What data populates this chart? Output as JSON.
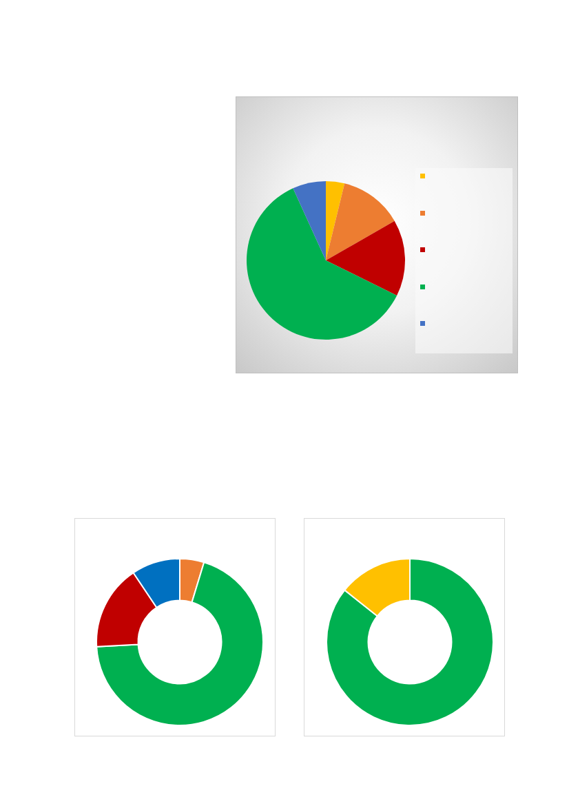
{
  "chart_data": [
    {
      "type": "pie",
      "categories": [
        null,
        null,
        null,
        null,
        null
      ],
      "values": [
        3.8,
        12.9,
        15.6,
        60.9,
        6.8
      ],
      "colors": [
        "#ffc000",
        "#ed7d31",
        "#c00000",
        "#00b050",
        "#4472c4"
      ]
    },
    {
      "type": "donut",
      "categories": [
        null,
        null,
        null,
        null
      ],
      "values": [
        4.7,
        69.4,
        16.5,
        9.4
      ],
      "colors": [
        "#ed7d31",
        "#00b050",
        "#c00000",
        "#0070c0"
      ]
    },
    {
      "type": "donut",
      "categories": [
        null,
        null
      ],
      "values": [
        85.7,
        14.3
      ],
      "colors": [
        "#00b050",
        "#ffc000"
      ]
    }
  ]
}
